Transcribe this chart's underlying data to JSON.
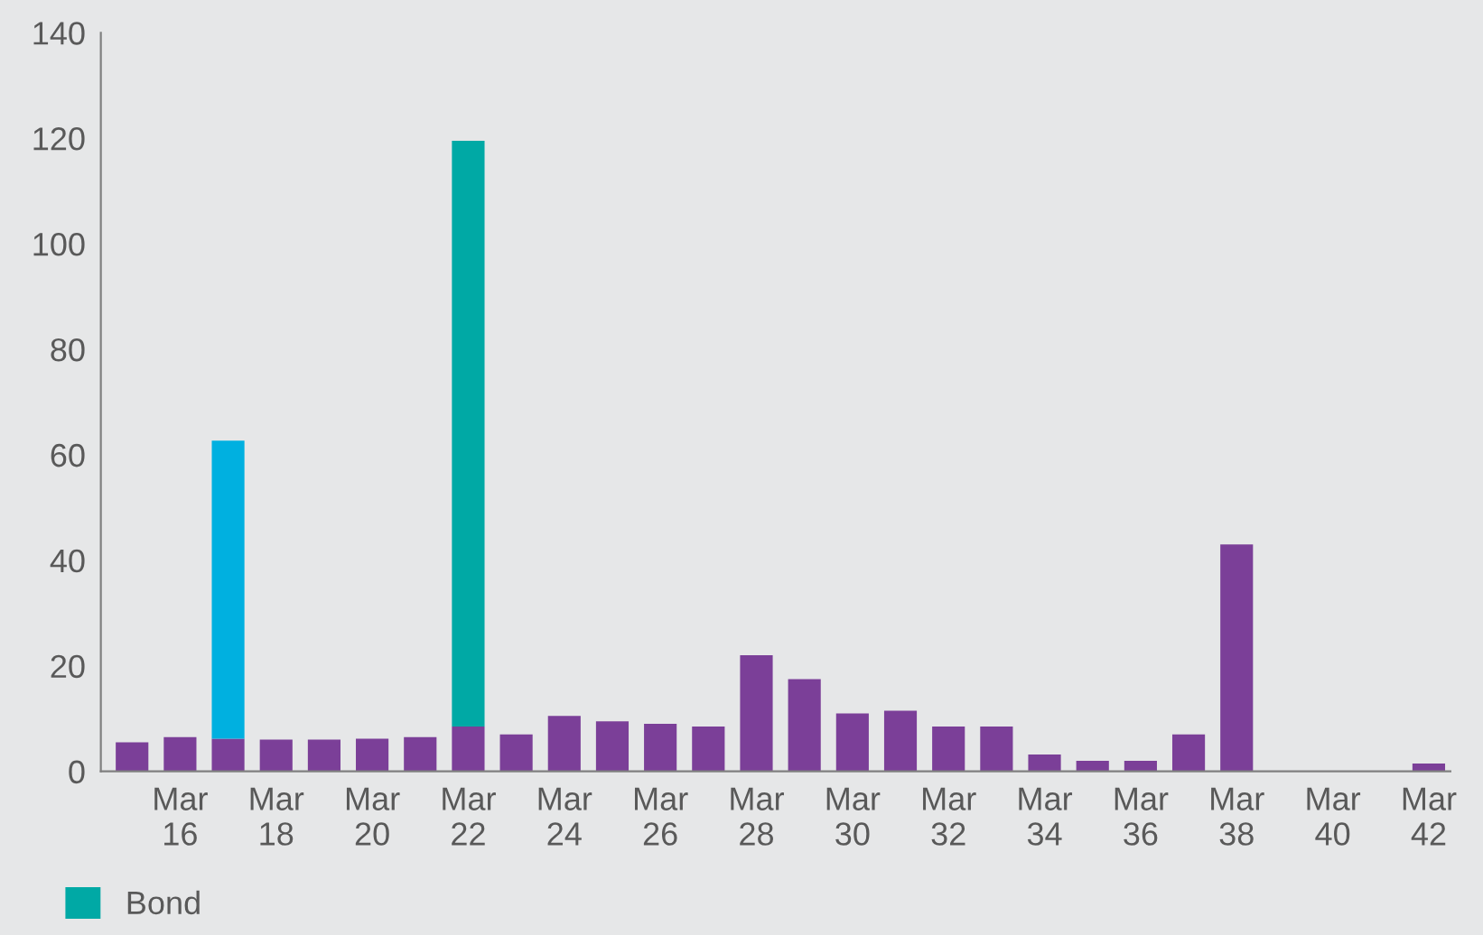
{
  "chart_data": {
    "type": "bar",
    "stacked": true,
    "categories": [
      null,
      "Mar\n16",
      null,
      "Mar\n18",
      null,
      "Mar\n20",
      null,
      "Mar\n22",
      null,
      "Mar\n24",
      null,
      "Mar\n26",
      null,
      "Mar\n28",
      null,
      "Mar\n30",
      null,
      "Mar\n32",
      null,
      "Mar\n34",
      null,
      "Mar\n36",
      null,
      "Mar\n38",
      null,
      "Mar\n40",
      null,
      "Mar\n42"
    ],
    "series": [
      {
        "color": "#7b3f98",
        "values": [
          5.5,
          6.5,
          6.2,
          6,
          6,
          6.2,
          6.5,
          8.5,
          7,
          10.5,
          9.5,
          9,
          8.5,
          22,
          17.5,
          11,
          11.5,
          8.5,
          8.5,
          3.2,
          2,
          2,
          7,
          43,
          0,
          0,
          0,
          1.5
        ]
      },
      {
        "color": "#00b0e0",
        "values": [
          0,
          0,
          56.5,
          0,
          0,
          0,
          0,
          0,
          0,
          0,
          0,
          0,
          0,
          0,
          0,
          0,
          0,
          0,
          0,
          0,
          0,
          0,
          0,
          0,
          0,
          0,
          0,
          0
        ]
      },
      {
        "name": "Bond",
        "color": "#00a9a5",
        "values": [
          0,
          0,
          0,
          0,
          0,
          0,
          0,
          111,
          0,
          0,
          0,
          0,
          0,
          0,
          0,
          0,
          0,
          0,
          0,
          0,
          0,
          0,
          0,
          0,
          0,
          0,
          0,
          0
        ]
      }
    ],
    "ylim": [
      0,
      140
    ],
    "yticks": [
      0,
      20,
      40,
      60,
      80,
      100,
      120,
      140
    ],
    "grid": false,
    "legend": "bottom left"
  }
}
